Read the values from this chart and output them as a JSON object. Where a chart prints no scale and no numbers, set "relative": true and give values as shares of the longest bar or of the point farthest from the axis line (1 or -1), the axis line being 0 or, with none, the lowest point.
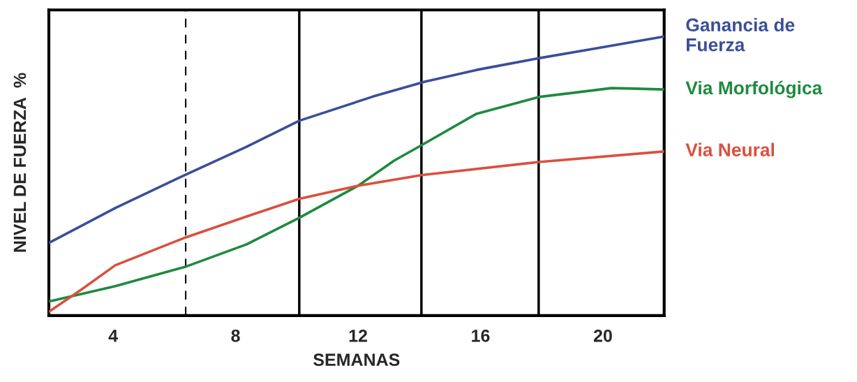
{
  "chart_data": {
    "type": "line",
    "xlabel": "SEMANAS",
    "ylabel": "NIVEL DE FUERZA  %",
    "relative": true,
    "xlim": [
      1.9,
      22
    ],
    "xticks": [
      4,
      8,
      12,
      16,
      20
    ],
    "tick_labels": "x",
    "grid": false,
    "legend": false,
    "marker": "none",
    "line_style": "solid",
    "ref_lines": [
      {
        "axis": "x",
        "value": 6.37,
        "color": "#000000",
        "line_style": "dashed"
      },
      {
        "axis": "x",
        "value": 10.08,
        "color": "#000000",
        "line_style": "solid"
      },
      {
        "axis": "x",
        "value": 14.07,
        "color": "#000000",
        "line_style": "solid"
      },
      {
        "axis": "x",
        "value": 17.9,
        "color": "#000000",
        "line_style": "solid"
      }
    ],
    "series": [
      {
        "name": "Ganancia de\nFuerza",
        "color": "#3a4f9a",
        "x": [
          1.9,
          4.07,
          6.37,
          8.36,
          10.08,
          12.5,
          14.18,
          15.87,
          17.9,
          19.91,
          22
        ],
        "values": [
          0.26,
          0.385,
          0.505,
          0.605,
          0.698,
          0.785,
          0.838,
          0.88,
          0.922,
          0.96,
          1
        ]
      },
      {
        "name": "Via Morfológica",
        "color": "#1e8a3e",
        "x": [
          1.9,
          4.07,
          6.37,
          8.36,
          10.08,
          12,
          13.18,
          14.07,
          15.87,
          17.9,
          19.17,
          20.28,
          21.01,
          22
        ],
        "values": [
          0.05,
          0.105,
          0.175,
          0.255,
          0.35,
          0.465,
          0.555,
          0.61,
          0.723,
          0.783,
          0.8,
          0.815,
          0.813,
          0.81
        ]
      },
      {
        "name": "Via Neural",
        "color": "#d9503f",
        "x": [
          1.9,
          2.96,
          4.07,
          6.37,
          8.36,
          10.08,
          12,
          14.07,
          17.9,
          22
        ],
        "values": [
          0.013,
          0.093,
          0.18,
          0.28,
          0.355,
          0.418,
          0.465,
          0.503,
          0.55,
          0.588
        ]
      }
    ]
  }
}
